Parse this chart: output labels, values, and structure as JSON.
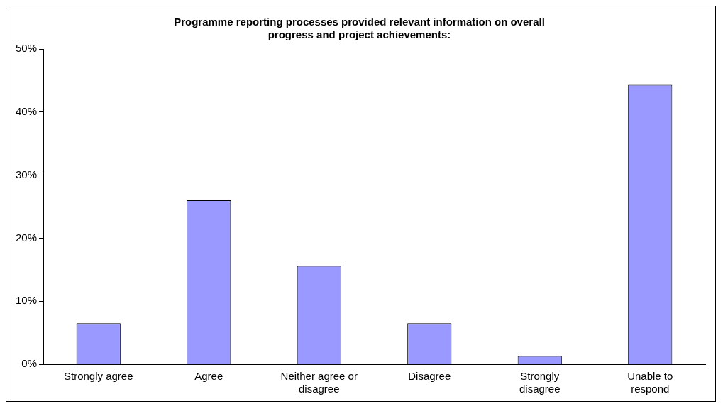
{
  "chart_data": {
    "type": "bar",
    "title": "Programme reporting processes provided relevant information on overall progress and project achievements:",
    "categories": [
      "Strongly agree",
      "Agree",
      "Neither agree or disagree",
      "Disagree",
      "Strongly disagree",
      "Unable to respond"
    ],
    "values": [
      6.5,
      26.0,
      15.6,
      6.5,
      1.3,
      44.3
    ],
    "color": "#9999ff",
    "ylim": [
      0,
      50
    ],
    "yticks": [
      {
        "value": 0,
        "label": "0%"
      },
      {
        "value": 10,
        "label": "10%"
      },
      {
        "value": 20,
        "label": "20%"
      },
      {
        "value": 30,
        "label": "30%"
      },
      {
        "value": 40,
        "label": "40%"
      },
      {
        "value": 50,
        "label": "50%"
      }
    ],
    "grid": false,
    "legend": false
  }
}
